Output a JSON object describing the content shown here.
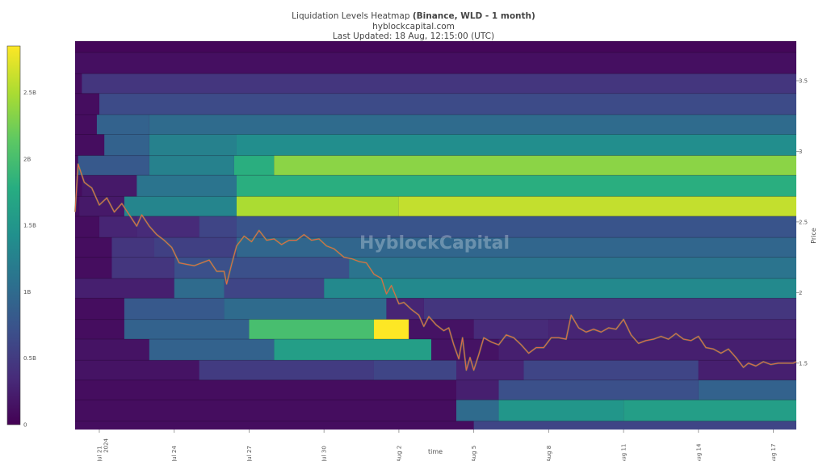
{
  "header": {
    "title_prefix": "Liquidation Levels Heatmap",
    "title_bold": "(Binance, WLD - 1 month)",
    "subtitle": "hyblockcapital.com",
    "updated": "Last Updated: 18 Aug, 12:15:00 (UTC)"
  },
  "watermark": "HyblockCapital",
  "colors": {
    "scale": [
      "#440154",
      "#472c7a",
      "#3b518b",
      "#2c718e",
      "#21908d",
      "#27ad81",
      "#5cc863",
      "#aadc32",
      "#fde725"
    ],
    "price_line": "#e8604c",
    "price_line_alt": "#4caf50"
  },
  "chart_data": {
    "type": "heatmap",
    "title": "Liquidation Levels Heatmap (Binance, WLD - 1 month)",
    "xlabel": "time",
    "ylabel": "Price",
    "x_ticks": [
      {
        "day": 1,
        "label": "Jul 21",
        "label2": "2024"
      },
      {
        "day": 4,
        "label": "Jul 24"
      },
      {
        "day": 7,
        "label": "Jul 27"
      },
      {
        "day": 10,
        "label": "Jul 30"
      },
      {
        "day": 13,
        "label": "Aug 2"
      },
      {
        "day": 16,
        "label": "Aug 5"
      },
      {
        "day": 19,
        "label": "Aug 8"
      },
      {
        "day": 22,
        "label": "Aug 11"
      },
      {
        "day": 25,
        "label": "Aug 14"
      },
      {
        "day": 28,
        "label": "Aug 17"
      }
    ],
    "x_range": [
      0.03,
      28.92
    ],
    "y_ticks": [
      1.5,
      2,
      2.5,
      3,
      3.5
    ],
    "y_range": [
      1.03,
      3.78
    ],
    "colorbar": {
      "min": 0,
      "max": 2.85,
      "unit": "B",
      "ticks": [
        {
          "value": 0,
          "label": "0"
        },
        {
          "value": 0.5,
          "label": "0.5B"
        },
        {
          "value": 1,
          "label": "1B"
        },
        {
          "value": 1.5,
          "label": "1.5B"
        },
        {
          "value": 2,
          "label": "2B"
        },
        {
          "value": 2.5,
          "label": "2.5B"
        }
      ]
    },
    "bands": [
      {
        "low": 3.7,
        "high": 3.78,
        "segments": [
          [
            0.03,
            28.92,
            0.05
          ]
        ]
      },
      {
        "low": 3.55,
        "high": 3.7,
        "segments": [
          [
            0.03,
            28.92,
            0.12
          ]
        ]
      },
      {
        "low": 3.41,
        "high": 3.55,
        "segments": [
          [
            0.03,
            0.3,
            0.1
          ],
          [
            0.3,
            28.92,
            0.45
          ]
        ]
      },
      {
        "low": 3.26,
        "high": 3.41,
        "segments": [
          [
            0.03,
            1.0,
            0.1
          ],
          [
            1.0,
            28.92,
            0.65
          ]
        ]
      },
      {
        "low": 3.12,
        "high": 3.26,
        "segments": [
          [
            0.03,
            0.9,
            0.1
          ],
          [
            0.9,
            3.0,
            0.9
          ],
          [
            3.0,
            28.92,
            1.0
          ]
        ]
      },
      {
        "low": 2.97,
        "high": 3.12,
        "segments": [
          [
            0.03,
            1.2,
            0.1
          ],
          [
            1.2,
            3.0,
            0.9
          ],
          [
            3.0,
            6.5,
            1.25
          ],
          [
            6.5,
            28.92,
            1.4
          ]
        ]
      },
      {
        "low": 2.83,
        "high": 2.97,
        "segments": [
          [
            0.03,
            0.15,
            0.1
          ],
          [
            0.15,
            3.0,
            0.8
          ],
          [
            3.0,
            6.4,
            1.25
          ],
          [
            6.4,
            8.0,
            1.8
          ],
          [
            8.0,
            28.92,
            2.35
          ]
        ]
      },
      {
        "low": 2.68,
        "high": 2.83,
        "segments": [
          [
            0.03,
            0.3,
            0.1
          ],
          [
            0.3,
            2.5,
            0.2
          ],
          [
            2.5,
            6.5,
            1.1
          ],
          [
            6.5,
            28.92,
            1.8
          ]
        ]
      },
      {
        "low": 2.54,
        "high": 2.68,
        "segments": [
          [
            0.03,
            0.2,
            0.1
          ],
          [
            0.2,
            2.0,
            0.2
          ],
          [
            2.0,
            6.5,
            1.3
          ],
          [
            6.5,
            13.0,
            2.5
          ],
          [
            13.0,
            28.92,
            2.6
          ]
        ]
      },
      {
        "low": 2.39,
        "high": 2.54,
        "segments": [
          [
            0.03,
            1.0,
            0.1
          ],
          [
            1.0,
            2.5,
            0.3
          ],
          [
            2.5,
            5.0,
            0.35
          ],
          [
            5.0,
            6.5,
            0.6
          ],
          [
            6.5,
            28.92,
            0.75
          ]
        ]
      },
      {
        "low": 2.25,
        "high": 2.39,
        "segments": [
          [
            0.03,
            1.5,
            0.1
          ],
          [
            1.5,
            3.2,
            0.45
          ],
          [
            3.2,
            6.5,
            0.55
          ],
          [
            6.5,
            28.92,
            0.95
          ]
        ]
      },
      {
        "low": 2.1,
        "high": 2.25,
        "segments": [
          [
            0.03,
            1.5,
            0.1
          ],
          [
            1.5,
            4.0,
            0.45
          ],
          [
            4.0,
            11.0,
            0.7
          ],
          [
            11.0,
            28.92,
            1.1
          ]
        ]
      },
      {
        "low": 1.96,
        "high": 2.1,
        "segments": [
          [
            0.03,
            4.0,
            0.25
          ],
          [
            4.0,
            6.0,
            1.0
          ],
          [
            6.0,
            10.0,
            0.6
          ],
          [
            10.0,
            28.92,
            1.35
          ]
        ]
      },
      {
        "low": 1.81,
        "high": 1.96,
        "segments": [
          [
            0.03,
            2.0,
            0.1
          ],
          [
            2.0,
            6.0,
            0.8
          ],
          [
            6.0,
            12.5,
            1.0
          ],
          [
            12.5,
            14.0,
            0.3
          ],
          [
            14.0,
            28.92,
            0.45
          ]
        ]
      },
      {
        "low": 1.67,
        "high": 1.81,
        "segments": [
          [
            0.03,
            2.0,
            0.1
          ],
          [
            2.0,
            7.0,
            0.9
          ],
          [
            7.0,
            12.0,
            2.0
          ],
          [
            12.0,
            13.4,
            2.85
          ],
          [
            13.4,
            16.0,
            0.15
          ],
          [
            16.0,
            19.0,
            0.35
          ],
          [
            19.0,
            28.92,
            0.3
          ]
        ]
      },
      {
        "low": 1.52,
        "high": 1.67,
        "segments": [
          [
            0.03,
            3.0,
            0.15
          ],
          [
            3.0,
            8.0,
            0.9
          ],
          [
            8.0,
            14.3,
            1.6
          ],
          [
            14.3,
            17.0,
            0.15
          ],
          [
            17.0,
            28.92,
            0.25
          ]
        ]
      },
      {
        "low": 1.38,
        "high": 1.52,
        "segments": [
          [
            0.03,
            5.0,
            0.15
          ],
          [
            5.0,
            12.0,
            0.5
          ],
          [
            12.0,
            15.3,
            0.6
          ],
          [
            15.3,
            18.0,
            0.3
          ],
          [
            18.0,
            25.0,
            0.6
          ],
          [
            25.0,
            28.92,
            0.25
          ]
        ]
      },
      {
        "low": 1.24,
        "high": 1.38,
        "segments": [
          [
            0.03,
            15.3,
            0.1
          ],
          [
            15.3,
            17.0,
            0.25
          ],
          [
            17.0,
            25.0,
            0.7
          ],
          [
            25.0,
            28.92,
            0.9
          ]
        ]
      },
      {
        "low": 1.09,
        "high": 1.24,
        "segments": [
          [
            0.03,
            15.3,
            0.1
          ],
          [
            15.3,
            17.0,
            1.0
          ],
          [
            17.0,
            22.0,
            1.5
          ],
          [
            22.0,
            28.92,
            1.6
          ]
        ]
      },
      {
        "low": 1.03,
        "high": 1.09,
        "segments": [
          [
            0.03,
            16.0,
            0.1
          ],
          [
            16.0,
            28.92,
            0.6
          ]
        ]
      }
    ],
    "price_series": [
      [
        0.03,
        2.57
      ],
      [
        0.15,
        2.91
      ],
      [
        0.4,
        2.78
      ],
      [
        0.7,
        2.74
      ],
      [
        1.0,
        2.62
      ],
      [
        1.3,
        2.67
      ],
      [
        1.6,
        2.57
      ],
      [
        1.9,
        2.63
      ],
      [
        2.2,
        2.55
      ],
      [
        2.5,
        2.47
      ],
      [
        2.7,
        2.55
      ],
      [
        3.0,
        2.47
      ],
      [
        3.3,
        2.41
      ],
      [
        3.6,
        2.37
      ],
      [
        3.9,
        2.32
      ],
      [
        4.2,
        2.21
      ],
      [
        4.5,
        2.2
      ],
      [
        4.8,
        2.19
      ],
      [
        5.1,
        2.21
      ],
      [
        5.4,
        2.23
      ],
      [
        5.7,
        2.15
      ],
      [
        6.0,
        2.15
      ],
      [
        6.1,
        2.06
      ],
      [
        6.3,
        2.2
      ],
      [
        6.5,
        2.33
      ],
      [
        6.8,
        2.4
      ],
      [
        7.1,
        2.36
      ],
      [
        7.4,
        2.44
      ],
      [
        7.7,
        2.37
      ],
      [
        8.0,
        2.38
      ],
      [
        8.3,
        2.34
      ],
      [
        8.6,
        2.37
      ],
      [
        8.9,
        2.37
      ],
      [
        9.2,
        2.41
      ],
      [
        9.5,
        2.37
      ],
      [
        9.8,
        2.38
      ],
      [
        10.1,
        2.33
      ],
      [
        10.4,
        2.31
      ],
      [
        10.8,
        2.25
      ],
      [
        11.1,
        2.24
      ],
      [
        11.4,
        2.22
      ],
      [
        11.7,
        2.21
      ],
      [
        12.0,
        2.13
      ],
      [
        12.3,
        2.1
      ],
      [
        12.5,
        1.99
      ],
      [
        12.7,
        2.05
      ],
      [
        13.0,
        1.92
      ],
      [
        13.2,
        1.93
      ],
      [
        13.5,
        1.88
      ],
      [
        13.8,
        1.84
      ],
      [
        14.0,
        1.76
      ],
      [
        14.2,
        1.83
      ],
      [
        14.5,
        1.77
      ],
      [
        14.8,
        1.73
      ],
      [
        15.0,
        1.75
      ],
      [
        15.2,
        1.63
      ],
      [
        15.4,
        1.53
      ],
      [
        15.55,
        1.68
      ],
      [
        15.7,
        1.45
      ],
      [
        15.85,
        1.54
      ],
      [
        16.0,
        1.45
      ],
      [
        16.2,
        1.56
      ],
      [
        16.4,
        1.68
      ],
      [
        16.7,
        1.65
      ],
      [
        17.0,
        1.63
      ],
      [
        17.3,
        1.7
      ],
      [
        17.6,
        1.68
      ],
      [
        17.9,
        1.63
      ],
      [
        18.2,
        1.57
      ],
      [
        18.5,
        1.61
      ],
      [
        18.8,
        1.61
      ],
      [
        19.1,
        1.68
      ],
      [
        19.4,
        1.68
      ],
      [
        19.7,
        1.67
      ],
      [
        19.9,
        1.84
      ],
      [
        20.2,
        1.75
      ],
      [
        20.5,
        1.72
      ],
      [
        20.8,
        1.74
      ],
      [
        21.1,
        1.72
      ],
      [
        21.4,
        1.75
      ],
      [
        21.7,
        1.74
      ],
      [
        22.0,
        1.81
      ],
      [
        22.3,
        1.7
      ],
      [
        22.6,
        1.64
      ],
      [
        22.9,
        1.66
      ],
      [
        23.2,
        1.67
      ],
      [
        23.5,
        1.69
      ],
      [
        23.8,
        1.67
      ],
      [
        24.1,
        1.71
      ],
      [
        24.4,
        1.67
      ],
      [
        24.7,
        1.66
      ],
      [
        25.0,
        1.69
      ],
      [
        25.3,
        1.61
      ],
      [
        25.6,
        1.6
      ],
      [
        25.9,
        1.57
      ],
      [
        26.2,
        1.6
      ],
      [
        26.5,
        1.54
      ],
      [
        26.8,
        1.47
      ],
      [
        27.0,
        1.5
      ],
      [
        27.3,
        1.48
      ],
      [
        27.6,
        1.51
      ],
      [
        27.9,
        1.49
      ],
      [
        28.2,
        1.5
      ],
      [
        28.5,
        1.5
      ],
      [
        28.8,
        1.5
      ],
      [
        28.92,
        1.51
      ]
    ]
  }
}
